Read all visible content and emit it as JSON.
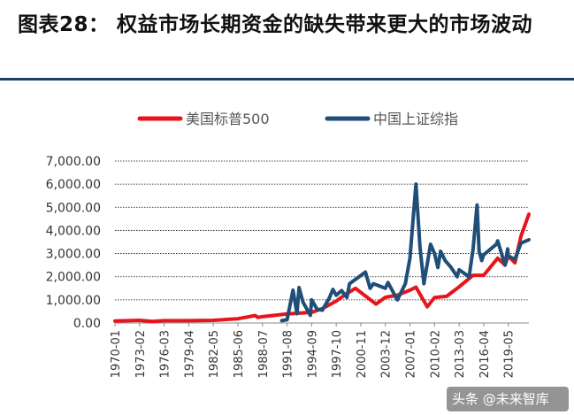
{
  "title": "图表28：  权益市场长期资金的缺失带来更大的市场波动",
  "watermark": "头条 @未来智库",
  "colors": {
    "sp500": "#e8141c",
    "shanghai": "#1f4e79",
    "header_rule": "#1f3f5e",
    "grid": "#111111"
  },
  "chart_data": {
    "type": "line",
    "title": "",
    "xlabel": "",
    "ylabel": "",
    "ylim": [
      0,
      7000
    ],
    "yticks": [
      "7,000.00",
      "6,000.00",
      "5,000.00",
      "4,000.00",
      "3,000.00",
      "2,000.00",
      "1,000.00",
      "0.00"
    ],
    "ytick_values": [
      7000,
      6000,
      5000,
      4000,
      3000,
      2000,
      1000,
      0
    ],
    "xticks": [
      "1970-01",
      "1973-02",
      "1976-03",
      "1979-04",
      "1982-05",
      "1985-06",
      "1988-07",
      "1991-08",
      "1994-09",
      "1997-10",
      "2000-11",
      "2003-12",
      "2007-01",
      "2010-02",
      "2013-03",
      "2016-04",
      "2019-05"
    ],
    "grid": "horizontal",
    "legend": "top",
    "series": [
      {
        "name": "美国标普500",
        "color": "#e8141c",
        "points": [
          [
            "1970-01",
            85
          ],
          [
            "1973-02",
            115
          ],
          [
            "1974-09",
            70
          ],
          [
            "1976-03",
            100
          ],
          [
            "1979-04",
            100
          ],
          [
            "1982-05",
            115
          ],
          [
            "1985-06",
            185
          ],
          [
            "1987-08",
            320
          ],
          [
            "1987-12",
            240
          ],
          [
            "1988-07",
            270
          ],
          [
            "1990-01",
            330
          ],
          [
            "1991-08",
            390
          ],
          [
            "1994-09",
            460
          ],
          [
            "1996-01",
            620
          ],
          [
            "1997-10",
            950
          ],
          [
            "1999-01",
            1250
          ],
          [
            "2000-03",
            1500
          ],
          [
            "2000-11",
            1320
          ],
          [
            "2002-10",
            820
          ],
          [
            "2003-12",
            1110
          ],
          [
            "2005-06",
            1200
          ],
          [
            "2007-01",
            1420
          ],
          [
            "2007-10",
            1550
          ],
          [
            "2009-03",
            700
          ],
          [
            "2010-02",
            1100
          ],
          [
            "2011-08",
            1150
          ],
          [
            "2013-03",
            1560
          ],
          [
            "2014-12",
            2060
          ],
          [
            "2016-04",
            2060
          ],
          [
            "2018-01",
            2800
          ],
          [
            "2018-12",
            2500
          ],
          [
            "2019-05",
            2900
          ],
          [
            "2020-03",
            2600
          ],
          [
            "2020-12",
            3750
          ],
          [
            "2021-12",
            4700
          ]
        ]
      },
      {
        "name": "中国上证综指",
        "color": "#1f4e79",
        "points": [
          [
            "1990-12",
            100
          ],
          [
            "1991-08",
            140
          ],
          [
            "1992-05",
            1420
          ],
          [
            "1992-11",
            400
          ],
          [
            "1993-02",
            1530
          ],
          [
            "1993-08",
            900
          ],
          [
            "1994-07",
            330
          ],
          [
            "1994-09",
            1000
          ],
          [
            "1995-05",
            600
          ],
          [
            "1996-01",
            550
          ],
          [
            "1996-12",
            1100
          ],
          [
            "1997-05",
            1450
          ],
          [
            "1997-10",
            1200
          ],
          [
            "1998-06",
            1400
          ],
          [
            "1999-02",
            1100
          ],
          [
            "1999-06",
            1700
          ],
          [
            "2000-11",
            2050
          ],
          [
            "2001-06",
            2200
          ],
          [
            "2002-01",
            1500
          ],
          [
            "2002-06",
            1700
          ],
          [
            "2003-12",
            1500
          ],
          [
            "2004-04",
            1750
          ],
          [
            "2005-06",
            1000
          ],
          [
            "2006-06",
            1700
          ],
          [
            "2007-01",
            2800
          ],
          [
            "2007-10",
            6000
          ],
          [
            "2008-04",
            3300
          ],
          [
            "2008-10",
            1700
          ],
          [
            "2009-08",
            3400
          ],
          [
            "2010-02",
            3000
          ],
          [
            "2010-07",
            2400
          ],
          [
            "2010-11",
            3100
          ],
          [
            "2011-06",
            2700
          ],
          [
            "2012-03",
            2400
          ],
          [
            "2012-12",
            2000
          ],
          [
            "2013-03",
            2300
          ],
          [
            "2014-06",
            2000
          ],
          [
            "2014-12",
            3200
          ],
          [
            "2015-06",
            5100
          ],
          [
            "2015-09",
            3100
          ],
          [
            "2016-01",
            2700
          ],
          [
            "2016-04",
            2950
          ],
          [
            "2017-11",
            3400
          ],
          [
            "2018-01",
            3550
          ],
          [
            "2018-12",
            2500
          ],
          [
            "2019-04",
            3200
          ],
          [
            "2019-05",
            2900
          ],
          [
            "2020-03",
            2750
          ],
          [
            "2020-12",
            3450
          ],
          [
            "2021-12",
            3600
          ]
        ]
      }
    ]
  }
}
